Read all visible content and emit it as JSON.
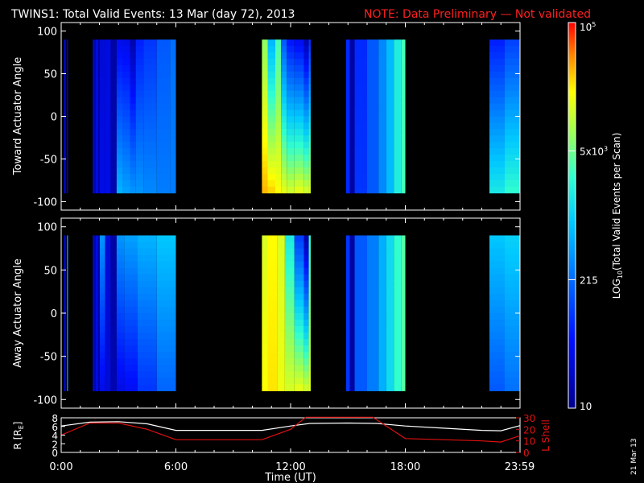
{
  "header": {
    "title": "TWINS1: Total Valid Events: 13 Mar (day  72), 2013",
    "note": "NOTE: Data Preliminary — Not validated"
  },
  "stamp": "21 Mar 13",
  "colors": {
    "note": "#ff2020",
    "lshell": "#e01010",
    "r": "#ffffff",
    "axes": "#ffffff"
  },
  "chart_data": [
    {
      "type": "heatmap",
      "ylabel": "Toward Actuator Angle",
      "ylim": [
        -110,
        110
      ],
      "yticks": [
        -100,
        -50,
        0,
        50,
        100
      ],
      "xlim": [
        0,
        24
      ],
      "scan_angle_range": [
        -90,
        90
      ]
    },
    {
      "type": "heatmap",
      "ylabel": "Away Actuator Angle",
      "ylim": [
        -110,
        110
      ],
      "yticks": [
        -100,
        -50,
        0,
        50,
        100
      ],
      "xlim": [
        0,
        24
      ],
      "scan_angle_range": [
        -90,
        90
      ]
    },
    {
      "type": "line",
      "xlabel": "Time (UT)",
      "xlim": [
        0,
        24
      ],
      "xtick_labels": [
        "0:00",
        "6:00",
        "12:00",
        "18:00",
        "23:59"
      ],
      "xticks": [
        0,
        6,
        12,
        18,
        23.98
      ],
      "left_axis": {
        "label": "R [R",
        "label_sub": "E",
        "label_end": "]",
        "ylim": [
          0,
          8
        ],
        "ticks": [
          0,
          2,
          4,
          6,
          8
        ]
      },
      "right_axis": {
        "label": "L Shell",
        "ylim": [
          0,
          30
        ],
        "ticks": [
          0,
          10,
          20,
          30
        ]
      },
      "series": [
        {
          "axis": "left",
          "x": [
            0,
            1.5,
            3,
            4.5,
            6,
            8,
            10.5,
            12,
            13,
            15,
            16.5,
            18,
            20,
            22,
            23,
            24
          ],
          "y": [
            6.1,
            7.0,
            7.1,
            6.6,
            5.1,
            5.1,
            5.1,
            6.1,
            6.7,
            6.8,
            6.7,
            6.1,
            5.6,
            5.1,
            5.0,
            6.2
          ]
        },
        {
          "axis": "right",
          "x": [
            0,
            1.5,
            3,
            4.5,
            6,
            8,
            10.5,
            12,
            12.8,
            14.8,
            16.3,
            18,
            20,
            22,
            23,
            24
          ],
          "y": [
            15,
            25.5,
            25.5,
            20,
            11,
            11,
            11,
            20,
            30.5,
            30.5,
            30.5,
            12,
            11,
            10,
            9,
            14.5
          ]
        }
      ]
    }
  ],
  "spectrogram": {
    "bands": [
      {
        "t0": 0.15,
        "t1": 0.22,
        "top": 0.12,
        "bottom": 0.12
      },
      {
        "t0": 0.22,
        "t1": 0.26,
        "top": 0.05,
        "bottom": 0.05
      },
      {
        "t0": 0.3,
        "t1": 0.36,
        "top": 0.07,
        "bottom": 0.07
      },
      {
        "t0": 1.65,
        "t1": 1.75,
        "top": 0.1,
        "bottom": 0.1
      },
      {
        "t0": 1.75,
        "t1": 1.82,
        "top": 0.05,
        "bottom": 0.05
      },
      {
        "t0": 1.82,
        "t1": 1.92,
        "top": 0.17,
        "bottom": 0.17
      },
      {
        "t0": 1.92,
        "t1": 2.02,
        "top": 0.04,
        "bottom": 0.05
      },
      {
        "t0": 2.02,
        "t1": 2.3,
        "top": 0.12,
        "bottom": 0.14
      },
      {
        "t0": 2.3,
        "t1": 2.6,
        "top": 0.13,
        "bottom": 0.14
      },
      {
        "t0": 2.6,
        "t1": 2.9,
        "top": 0.04,
        "bottom": 0.06
      },
      {
        "t0": 2.9,
        "t1": 3.2,
        "top": 0.15,
        "bottom": 0.45
      },
      {
        "t0": 3.2,
        "t1": 3.6,
        "top": 0.14,
        "bottom": 0.42
      },
      {
        "t0": 3.6,
        "t1": 3.9,
        "top": 0.05,
        "bottom": 0.4
      },
      {
        "t0": 3.9,
        "t1": 4.3,
        "top": 0.2,
        "bottom": 0.4
      },
      {
        "t0": 4.3,
        "t1": 5.0,
        "top": 0.24,
        "bottom": 0.38
      },
      {
        "t0": 5.0,
        "t1": 5.7,
        "top": 0.3,
        "bottom": 0.36
      },
      {
        "t0": 5.7,
        "t1": 6.0,
        "top": 0.34,
        "bottom": 0.36
      },
      {
        "t0": 10.5,
        "t1": 10.8,
        "top": 0.7,
        "bottom": 0.88
      },
      {
        "t0": 10.8,
        "t1": 11.2,
        "top": 0.45,
        "bottom": 0.86
      },
      {
        "t0": 11.2,
        "t1": 11.5,
        "top": 0.62,
        "bottom": 0.82
      },
      {
        "t0": 11.5,
        "t1": 11.8,
        "top": 0.3,
        "bottom": 0.8
      },
      {
        "t0": 11.8,
        "t1": 12.2,
        "top": 0.18,
        "bottom": 0.78
      },
      {
        "t0": 12.2,
        "t1": 12.7,
        "top": 0.15,
        "bottom": 0.8
      },
      {
        "t0": 12.7,
        "t1": 12.95,
        "top": 0.05,
        "bottom": 0.78
      },
      {
        "t0": 12.95,
        "t1": 13.05,
        "top": 0.22,
        "bottom": 0.8
      },
      {
        "t0": 14.9,
        "t1": 15.1,
        "top": 0.22,
        "bottom": 0.22
      },
      {
        "t0": 15.1,
        "t1": 15.35,
        "top": 0.04,
        "bottom": 0.04
      },
      {
        "t0": 15.35,
        "t1": 16.0,
        "top": 0.22,
        "bottom": 0.24
      },
      {
        "t0": 16.0,
        "t1": 16.6,
        "top": 0.3,
        "bottom": 0.3
      },
      {
        "t0": 16.6,
        "t1": 17.0,
        "top": 0.38,
        "bottom": 0.38
      },
      {
        "t0": 17.0,
        "t1": 17.4,
        "top": 0.46,
        "bottom": 0.46
      },
      {
        "t0": 17.4,
        "t1": 17.8,
        "top": 0.56,
        "bottom": 0.56
      },
      {
        "t0": 17.8,
        "t1": 18.0,
        "top": 0.62,
        "bottom": 0.62
      },
      {
        "t0": 22.4,
        "t1": 23.2,
        "top": 0.2,
        "bottom": 0.55
      },
      {
        "t0": 23.2,
        "t1": 23.98,
        "top": 0.26,
        "bottom": 0.6
      }
    ],
    "away_bands": [
      {
        "t0": 0.15,
        "t1": 0.22,
        "top": 0.12,
        "bottom": 0.12
      },
      {
        "t0": 0.22,
        "t1": 0.26,
        "top": 0.05,
        "bottom": 0.05
      },
      {
        "t0": 0.3,
        "t1": 0.36,
        "top": 0.4,
        "bottom": 0.38
      },
      {
        "t0": 1.65,
        "t1": 1.75,
        "top": 0.1,
        "bottom": 0.1
      },
      {
        "t0": 1.75,
        "t1": 1.82,
        "top": 0.05,
        "bottom": 0.05
      },
      {
        "t0": 1.82,
        "t1": 1.92,
        "top": 0.17,
        "bottom": 0.17
      },
      {
        "t0": 1.92,
        "t1": 2.02,
        "top": 0.04,
        "bottom": 0.05
      },
      {
        "t0": 2.02,
        "t1": 2.3,
        "top": 0.4,
        "bottom": 0.14
      },
      {
        "t0": 2.3,
        "t1": 2.6,
        "top": 0.12,
        "bottom": 0.12
      },
      {
        "t0": 2.6,
        "t1": 2.9,
        "top": 0.04,
        "bottom": 0.06
      },
      {
        "t0": 2.9,
        "t1": 3.3,
        "top": 0.4,
        "bottom": 0.14
      },
      {
        "t0": 3.3,
        "t1": 4.0,
        "top": 0.42,
        "bottom": 0.16
      },
      {
        "t0": 4.0,
        "t1": 5.0,
        "top": 0.45,
        "bottom": 0.24
      },
      {
        "t0": 5.0,
        "t1": 6.0,
        "top": 0.48,
        "bottom": 0.32
      },
      {
        "t0": 10.5,
        "t1": 10.8,
        "top": 0.78,
        "bottom": 0.82
      },
      {
        "t0": 10.8,
        "t1": 11.3,
        "top": 0.82,
        "bottom": 0.84
      },
      {
        "t0": 11.3,
        "t1": 11.7,
        "top": 0.78,
        "bottom": 0.8
      },
      {
        "t0": 11.7,
        "t1": 12.2,
        "top": 0.55,
        "bottom": 0.78
      },
      {
        "t0": 12.2,
        "t1": 12.7,
        "top": 0.25,
        "bottom": 0.8
      },
      {
        "t0": 12.7,
        "t1": 12.95,
        "top": 0.04,
        "bottom": 0.78
      },
      {
        "t0": 12.95,
        "t1": 13.05,
        "top": 0.6,
        "bottom": 0.8
      },
      {
        "t0": 14.9,
        "t1": 15.1,
        "top": 0.24,
        "bottom": 0.24
      },
      {
        "t0": 15.1,
        "t1": 15.35,
        "top": 0.04,
        "bottom": 0.04
      },
      {
        "t0": 15.35,
        "t1": 16.0,
        "top": 0.3,
        "bottom": 0.3
      },
      {
        "t0": 16.0,
        "t1": 16.6,
        "top": 0.36,
        "bottom": 0.36
      },
      {
        "t0": 16.6,
        "t1": 17.0,
        "top": 0.44,
        "bottom": 0.44
      },
      {
        "t0": 17.0,
        "t1": 17.4,
        "top": 0.52,
        "bottom": 0.52
      },
      {
        "t0": 17.4,
        "t1": 17.8,
        "top": 0.6,
        "bottom": 0.6
      },
      {
        "t0": 17.8,
        "t1": 18.0,
        "top": 0.64,
        "bottom": 0.64
      },
      {
        "t0": 22.4,
        "t1": 23.2,
        "top": 0.48,
        "bottom": 0.3
      },
      {
        "t0": 23.2,
        "t1": 23.98,
        "top": 0.5,
        "bottom": 0.34
      }
    ]
  },
  "colorbar": {
    "label": "LOG",
    "label_sub": "10",
    "label_rest": "(Total Valid  Events per Scan)",
    "ticks": [
      {
        "label": "10",
        "frac": 0.0
      },
      {
        "label": "215",
        "frac": 0.333
      },
      {
        "label": "5x10",
        "sup": "3",
        "frac": 0.667
      },
      {
        "label": "10",
        "sup": "5",
        "frac": 1.0
      }
    ]
  }
}
